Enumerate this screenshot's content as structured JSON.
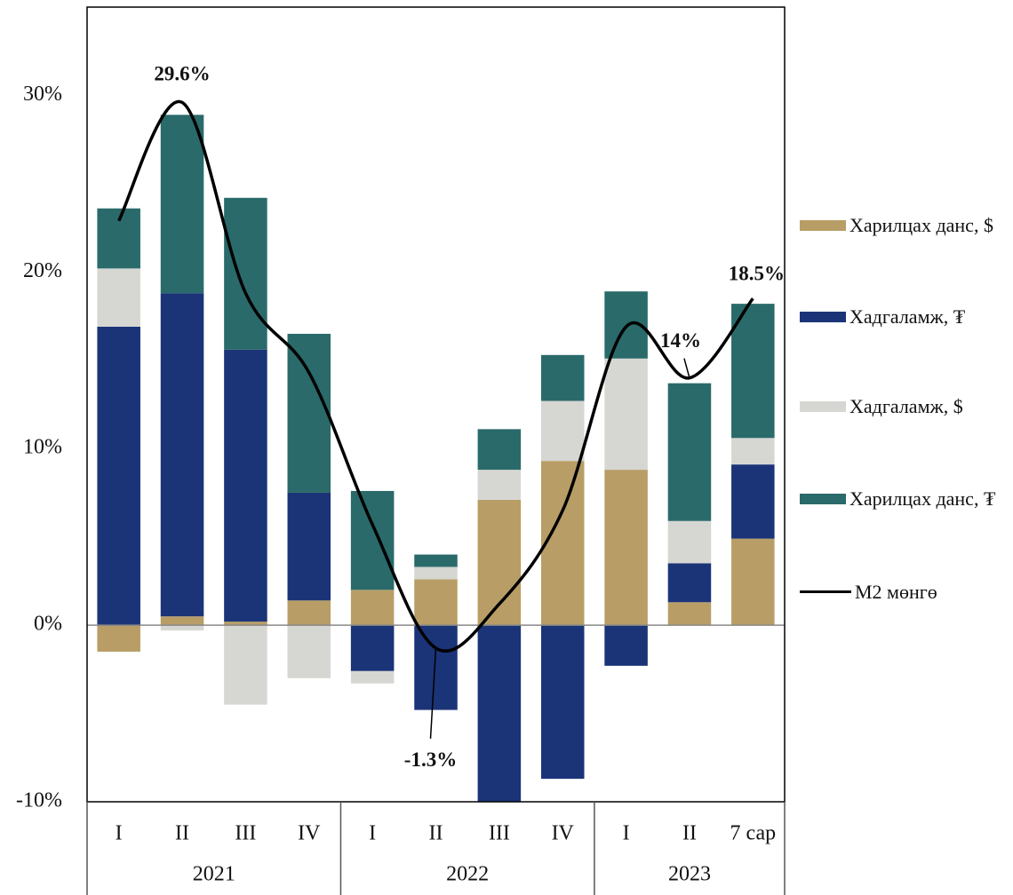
{
  "chart_data": {
    "type": "stacked-bar-line",
    "category_groups": [
      {
        "name": "2021",
        "categories": [
          "I",
          "II",
          "III",
          "IV"
        ]
      },
      {
        "name": "2022",
        "categories": [
          "I",
          "II",
          "III",
          "IV"
        ]
      },
      {
        "name": "2023",
        "categories": [
          "I",
          "II",
          "7 сар"
        ]
      }
    ],
    "series": [
      {
        "name": "Харилцах данс, $",
        "color": "#b89e66",
        "values": [
          -1.5,
          0.5,
          0.2,
          1.4,
          2.0,
          2.6,
          7.1,
          9.3,
          8.8,
          1.3,
          4.9
        ]
      },
      {
        "name": "Хадгаламж, ₮",
        "color": "#1b3478",
        "values": [
          16.9,
          18.3,
          15.4,
          6.1,
          -2.6,
          -4.8,
          -11,
          -8.7,
          -2.3,
          2.2,
          4.2
        ]
      },
      {
        "name": "Хадгаламж, $",
        "color": "#d6d6d3",
        "values": [
          3.3,
          -0.3,
          -4.5,
          -3.0,
          -0.7,
          0.7,
          1.7,
          3.4,
          6.3,
          2.4,
          1.5
        ]
      },
      {
        "name": "Харилцах данс, ₮",
        "color": "#2a6a6a",
        "values": [
          3.4,
          10.1,
          8.6,
          9.0,
          5.6,
          0.7,
          2.3,
          2.6,
          3.8,
          7.8,
          7.6
        ]
      }
    ],
    "line": {
      "name": "M2 мөнгө",
      "color": "#000000",
      "values": [
        22.9,
        29.6,
        18.8,
        14.3,
        5.7,
        -1.3,
        1.2,
        6.5,
        16.9,
        14,
        18.5
      ],
      "value_labels": [
        null,
        "29.6%",
        null,
        null,
        null,
        "-1.3%",
        null,
        null,
        null,
        "14%",
        "18.5%"
      ]
    },
    "ylim": [
      -10,
      35
    ],
    "yticks": [
      {
        "value": -10,
        "label": "-10%"
      },
      {
        "value": 0,
        "label": "0%"
      },
      {
        "value": 10,
        "label": "10%"
      },
      {
        "value": 20,
        "label": "20%"
      },
      {
        "value": 30,
        "label": "30%"
      }
    ]
  }
}
